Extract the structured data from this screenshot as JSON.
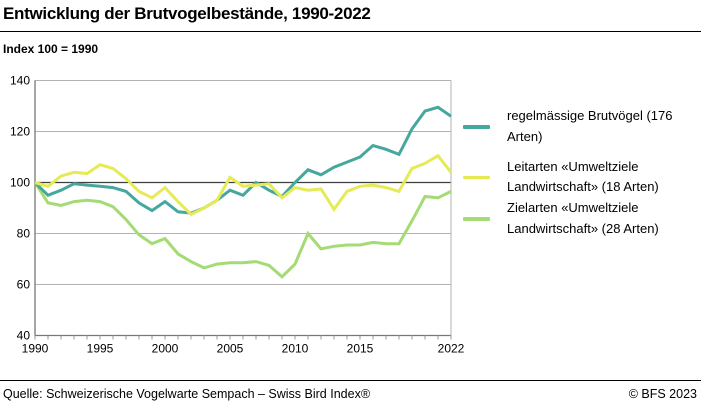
{
  "header": {
    "title": "Entwicklung der Brutvogelbestände, 1990-2022",
    "subtitle": "Index 100 = 1990"
  },
  "footer": {
    "source": "Quelle: Schweizerische Vogelwarte Sempach – Swiss Bird Index®",
    "copyright": "© BFS 2023"
  },
  "colors": {
    "gridline": "#b3b3b3",
    "baseline_100": "#3f3f3f",
    "axis": "#777777",
    "tick": "#999999",
    "text": "#000000",
    "teal": "#45a79d",
    "yellow": "#e6ea55",
    "green": "#a4db74"
  },
  "chart_data": {
    "type": "line",
    "title": "Entwicklung der Brutvogelbestände, 1990-2022",
    "subtitle": "Index 100 = 1990",
    "xlabel": "",
    "ylabel": "",
    "x": [
      1990,
      1991,
      1992,
      1993,
      1994,
      1995,
      1996,
      1997,
      1998,
      1999,
      2000,
      2001,
      2002,
      2003,
      2004,
      2005,
      2006,
      2007,
      2008,
      2009,
      2010,
      2011,
      2012,
      2013,
      2014,
      2015,
      2016,
      2017,
      2018,
      2019,
      2020,
      2021,
      2022
    ],
    "series": [
      {
        "name": "regelmässige Brutvögel (176 Arten)",
        "color": "#45a79d",
        "values": [
          100,
          95,
          97,
          99.5,
          99,
          98.5,
          98,
          96.5,
          92,
          89,
          92.5,
          88.5,
          88,
          90,
          93,
          97,
          95,
          100,
          97,
          94.5,
          100,
          105,
          103,
          106,
          108,
          110,
          114.5,
          113,
          111,
          121,
          128,
          129.5,
          126
        ]
      },
      {
        "name": "Leitarten «Umweltziele Landwirtschaft» (18 Arten)",
        "color": "#e6ea55",
        "values": [
          100,
          98.5,
          102.5,
          104,
          103.5,
          107,
          105.5,
          101.5,
          96.5,
          94,
          98,
          92.5,
          87.5,
          90,
          93,
          102,
          98.5,
          99,
          99.5,
          94,
          98,
          97,
          97.5,
          89.5,
          96.5,
          98.5,
          99,
          98,
          96.5,
          105.5,
          107.5,
          110.5,
          104
        ]
      },
      {
        "name": "Zielarten «Umweltziele Landwirtschaft» (28 Arten)",
        "color": "#a4db74",
        "values": [
          100,
          92,
          91,
          92.5,
          93,
          92.5,
          90.5,
          85.5,
          79.5,
          76,
          78,
          72,
          69,
          66.5,
          68,
          68.5,
          68.5,
          69,
          67.5,
          63,
          68,
          80,
          74,
          75,
          75.5,
          75.5,
          76.5,
          76,
          76,
          85,
          94.5,
          94,
          96.5
        ]
      }
    ],
    "draw_order": [
      2,
      0,
      1
    ],
    "ylim": [
      40,
      140
    ],
    "yticks": [
      40,
      60,
      80,
      100,
      120,
      140
    ],
    "xticks_labeled": [
      1990,
      1995,
      2000,
      2005,
      2010,
      2015,
      2022
    ],
    "baseline": 100,
    "grid": true,
    "tick_every_year": true,
    "legend_position": "right"
  }
}
